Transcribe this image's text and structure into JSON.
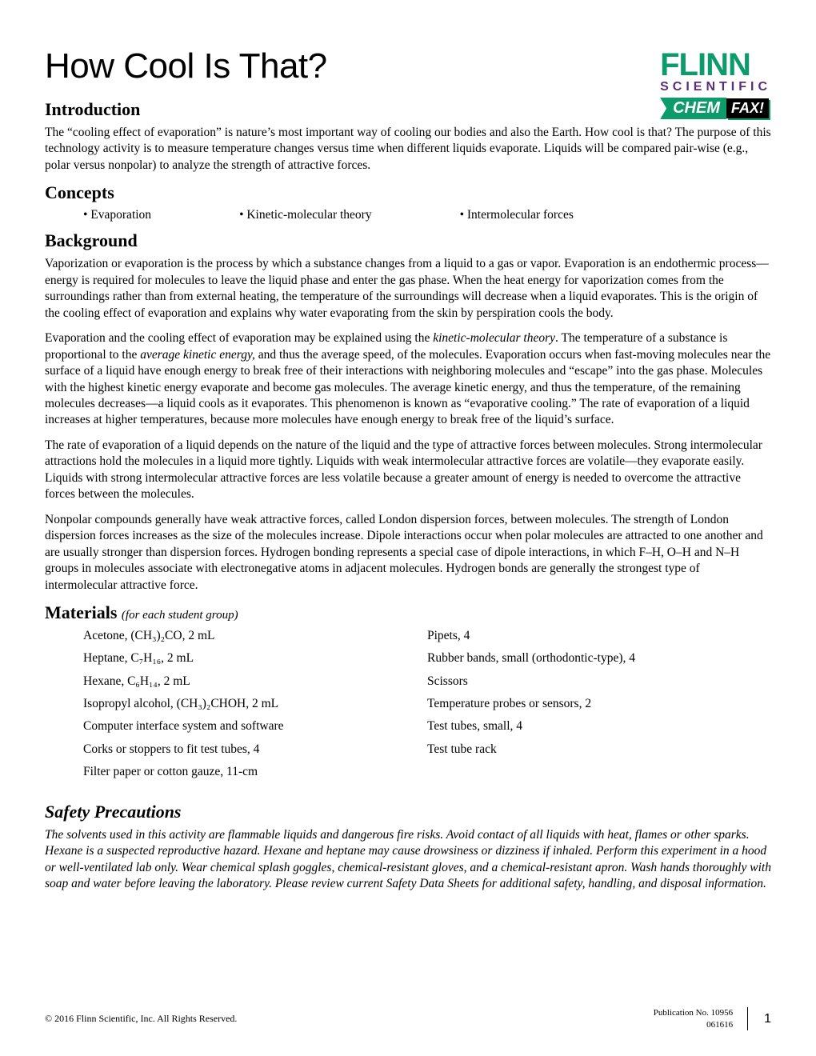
{
  "logo": {
    "line1": "FLINN",
    "line2": "SCIENTIFIC",
    "badge_chem": "CHEM",
    "badge_fax": "FAX!",
    "colors": {
      "green": "#0d9b6c",
      "purple": "#5c2d7a",
      "black": "#000000"
    }
  },
  "title": "How Cool Is That?",
  "introduction": {
    "heading": "Introduction",
    "text": "The “cooling effect of evaporation” is nature’s most important way of cooling our bodies and also the Earth. How cool is that? The purpose of this technology activity is to measure temperature changes versus time when different liquids evaporate. Liquids will be compared pair-wise (e.g., polar versus nonpolar) to analyze the strength of attractive forces."
  },
  "concepts": {
    "heading": "Concepts",
    "items": [
      "• Evaporation",
      "• Kinetic-molecular theory",
      "• Intermolecular forces"
    ]
  },
  "background": {
    "heading": "Background",
    "p1": "Vaporization or evaporation is the process by which a substance changes from a liquid to a gas or vapor. Evaporation is an endothermic process—energy is required for molecules to leave the liquid phase and enter the gas phase. When the heat energy for vaporization comes from the surroundings rather than from external heating, the temperature of the surroundings will decrease when a liquid evaporates. This is the origin of the cooling effect of evaporation and explains why water evaporating from the skin by perspiration cools the body.",
    "p2_pre": "Evaporation and the cooling effect of evaporation may be explained using the ",
    "p2_em1": "kinetic-molecular theory",
    "p2_mid": ". The temperature of a substance is proportional to the ",
    "p2_em2": "average kinetic energy,",
    "p2_post": " and thus the average speed, of the molecules. Evaporation occurs when fast-moving molecules near the surface of a liquid have enough energy to break free of their interactions with neighboring molecules and “escape” into the gas phase. Molecules with the highest kinetic energy evaporate and become gas molecules. The average kinetic energy, and thus the temperature, of the remaining molecules decreases—a liquid cools as it evaporates. This phenomenon is known as “evaporative cooling.” The rate of evaporation of a liquid increases at higher temperatures, because more molecules have enough energy to break free of the liquid’s surface.",
    "p3": "The rate of evaporation of a liquid depends on the nature of the liquid and the type of attractive forces between molecules. Strong intermolecular attractions hold the molecules in a liquid more tightly. Liquids with weak intermolecular attractive forces are volatile—they evaporate easily. Liquids with strong intermolecular attractive forces are less volatile because a greater amount of energy is needed to overcome the attractive forces between the molecules.",
    "p4": "Nonpolar compounds generally have weak attractive forces, called London dispersion forces, between molecules. The strength of London dispersion forces increases as the size of the molecules increase. Dipole interactions occur when polar molecules are attracted to one another and are usually stronger than dispersion forces. Hydrogen bonding represents a special case of dipole interactions, in which F–H, O–H and N–H groups in molecules associate with electronegative atoms in adjacent molecules. Hydrogen bonds are generally the strongest type of intermolecular attractive force."
  },
  "materials": {
    "heading": "Materials",
    "note": "(for each student group)",
    "col1": [
      "Acetone, (CH₃)₂CO, 2 mL",
      "Heptane, C₇H₁₆, 2 mL",
      "Hexane, C₆H₁₄, 2 mL",
      "Isopropyl alcohol, (CH₃)₂CHOH, 2 mL",
      "Computer interface system and software",
      "Corks or stoppers to fit test tubes, 4",
      "Filter paper or cotton gauze, 11-cm"
    ],
    "col2": [
      "Pipets, 4",
      "Rubber bands, small (orthodontic-type), 4",
      "Scissors",
      "Temperature probes or sensors, 2",
      "Test tubes, small, 4",
      "Test tube rack"
    ]
  },
  "safety": {
    "heading": "Safety Precautions",
    "text": "The solvents used in this activity are flammable liquids and dangerous fire risks. Avoid contact of all liquids with heat, flames or other sparks. Hexane is a suspected reproductive hazard. Hexane and heptane may cause drowsiness or dizziness if inhaled. Perform this experiment in a hood or well-ventilated lab only. Wear chemical splash goggles, chemical-resistant gloves, and a chemical-resistant apron. Wash hands thoroughly with soap and water before leaving the laboratory. Please review current Safety Data Sheets for additional safety, handling, and disposal information."
  },
  "footer": {
    "copyright": "© 2016 Flinn Scientific, Inc. All Rights Reserved.",
    "pub_label": "Publication No. 10956",
    "pub_code": "061616",
    "page": "1"
  }
}
